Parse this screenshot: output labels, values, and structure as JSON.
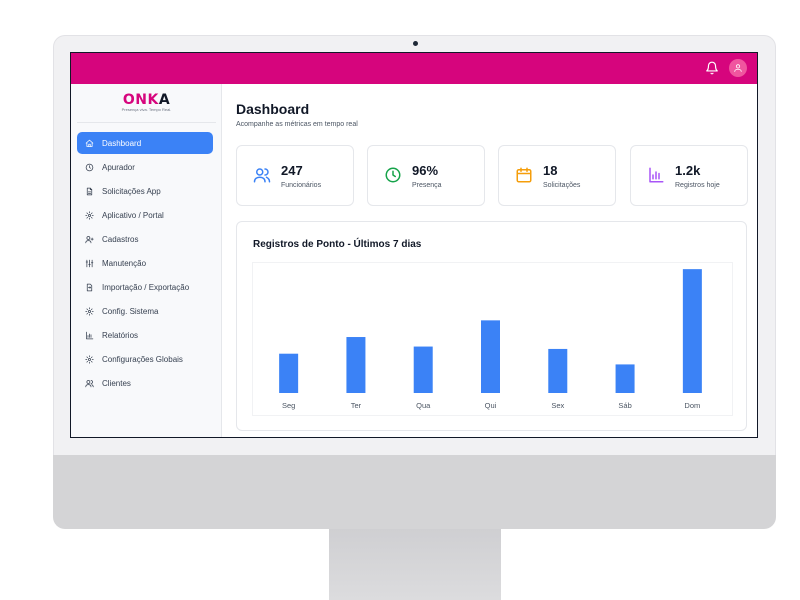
{
  "brand": {
    "name_a": "ONK",
    "name_b": "A",
    "tagline": "Presença viva. Tempo Real."
  },
  "colors": {
    "brand": "#d6057d",
    "accent": "#3b82f6",
    "bar": "#3b82f6"
  },
  "header": {
    "notification_icon": "bell-icon",
    "avatar_icon": "user-icon"
  },
  "sidebar": {
    "items": [
      {
        "label": "Dashboard",
        "icon": "home-icon",
        "active": true
      },
      {
        "label": "Apurador",
        "icon": "clock-icon"
      },
      {
        "label": "Solicitações App",
        "icon": "document-icon"
      },
      {
        "label": "Aplicativo / Portal",
        "icon": "gear-icon"
      },
      {
        "label": "Cadastros",
        "icon": "user-plus-icon"
      },
      {
        "label": "Manutenção",
        "icon": "sliders-icon"
      },
      {
        "label": "Importação / Exportação",
        "icon": "file-transfer-icon"
      },
      {
        "label": "Config. Sistema",
        "icon": "gear-icon"
      },
      {
        "label": "Relatórios",
        "icon": "bar-chart-icon"
      },
      {
        "label": "Configurações Globais",
        "icon": "gear-icon"
      },
      {
        "label": "Clientes",
        "icon": "users-icon"
      }
    ]
  },
  "main": {
    "title": "Dashboard",
    "subtitle": "Acompanhe as métricas em tempo real",
    "stats": [
      {
        "value": "247",
        "label": "Funcionários",
        "icon": "users-icon",
        "color": "#3b82f6"
      },
      {
        "value": "96%",
        "label": "Presença",
        "icon": "clock-icon",
        "color": "#16a34a"
      },
      {
        "value": "18",
        "label": "Solicitações",
        "icon": "calendar-icon",
        "color": "#f59e0b"
      },
      {
        "value": "1.2k",
        "label": "Registros hoje",
        "icon": "bar-chart-icon",
        "color": "#a855f7"
      }
    ]
  },
  "chart_data": {
    "type": "bar",
    "title": "Registros de Ponto - Últimos 7 dias",
    "categories": [
      "Seg",
      "Ter",
      "Qua",
      "Qui",
      "Sex",
      "Sáb",
      "Dom"
    ],
    "values": [
      33,
      47,
      39,
      61,
      37,
      24,
      104
    ],
    "ylim": [
      0,
      110
    ],
    "grid": false,
    "legend": "none"
  }
}
